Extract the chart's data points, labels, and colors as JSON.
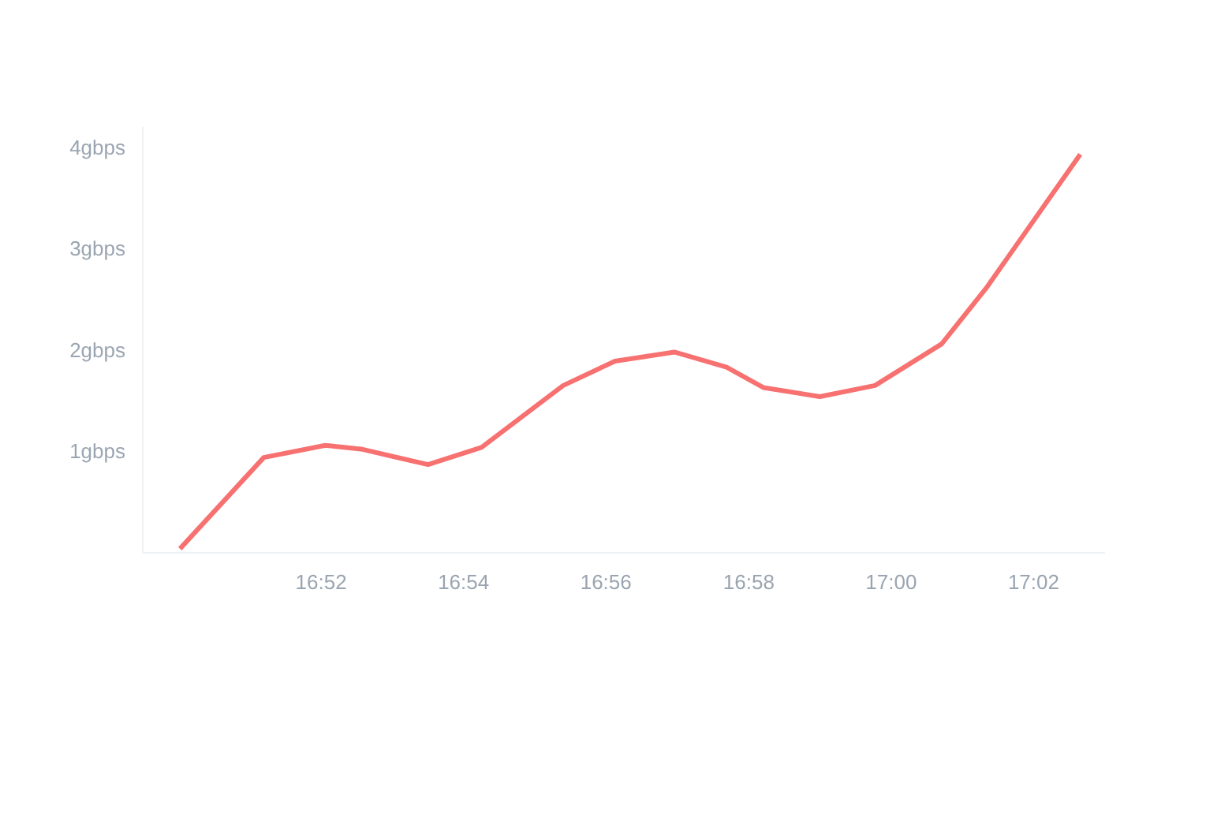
{
  "chart_data": {
    "type": "line",
    "x": [
      16.8337,
      16.8533,
      16.8677,
      16.8764,
      16.8917,
      16.9042,
      16.9233,
      16.9354,
      16.9493,
      16.9615,
      16.9701,
      16.9833,
      16.9962,
      17.0118,
      17.0222,
      17.0442
    ],
    "series": [
      {
        "color": "#f87171",
        "values": [
          0.04,
          0.94,
          1.06,
          1.02,
          0.87,
          1.04,
          1.65,
          1.89,
          1.98,
          1.83,
          1.63,
          1.54,
          1.65,
          2.06,
          2.61,
          3.93
        ]
      }
    ],
    "xticks": [
      {
        "value": 16.8667,
        "label": "16:52"
      },
      {
        "value": 16.9,
        "label": "16:54"
      },
      {
        "value": 16.9333,
        "label": "16:56"
      },
      {
        "value": 16.9667,
        "label": "16:58"
      },
      {
        "value": 17.0,
        "label": "17:00"
      },
      {
        "value": 17.0333,
        "label": "17:02"
      }
    ],
    "xlim": [
      16.825,
      17.05
    ],
    "ylim": [
      0,
      4.2
    ],
    "yticks": [
      {
        "value": 1,
        "label": "1gbps"
      },
      {
        "value": 2,
        "label": "2gbps"
      },
      {
        "value": 3,
        "label": "3gbps"
      },
      {
        "value": 4,
        "label": "4gbps"
      }
    ],
    "grid": false,
    "line_style": "solid",
    "marker": "none"
  }
}
